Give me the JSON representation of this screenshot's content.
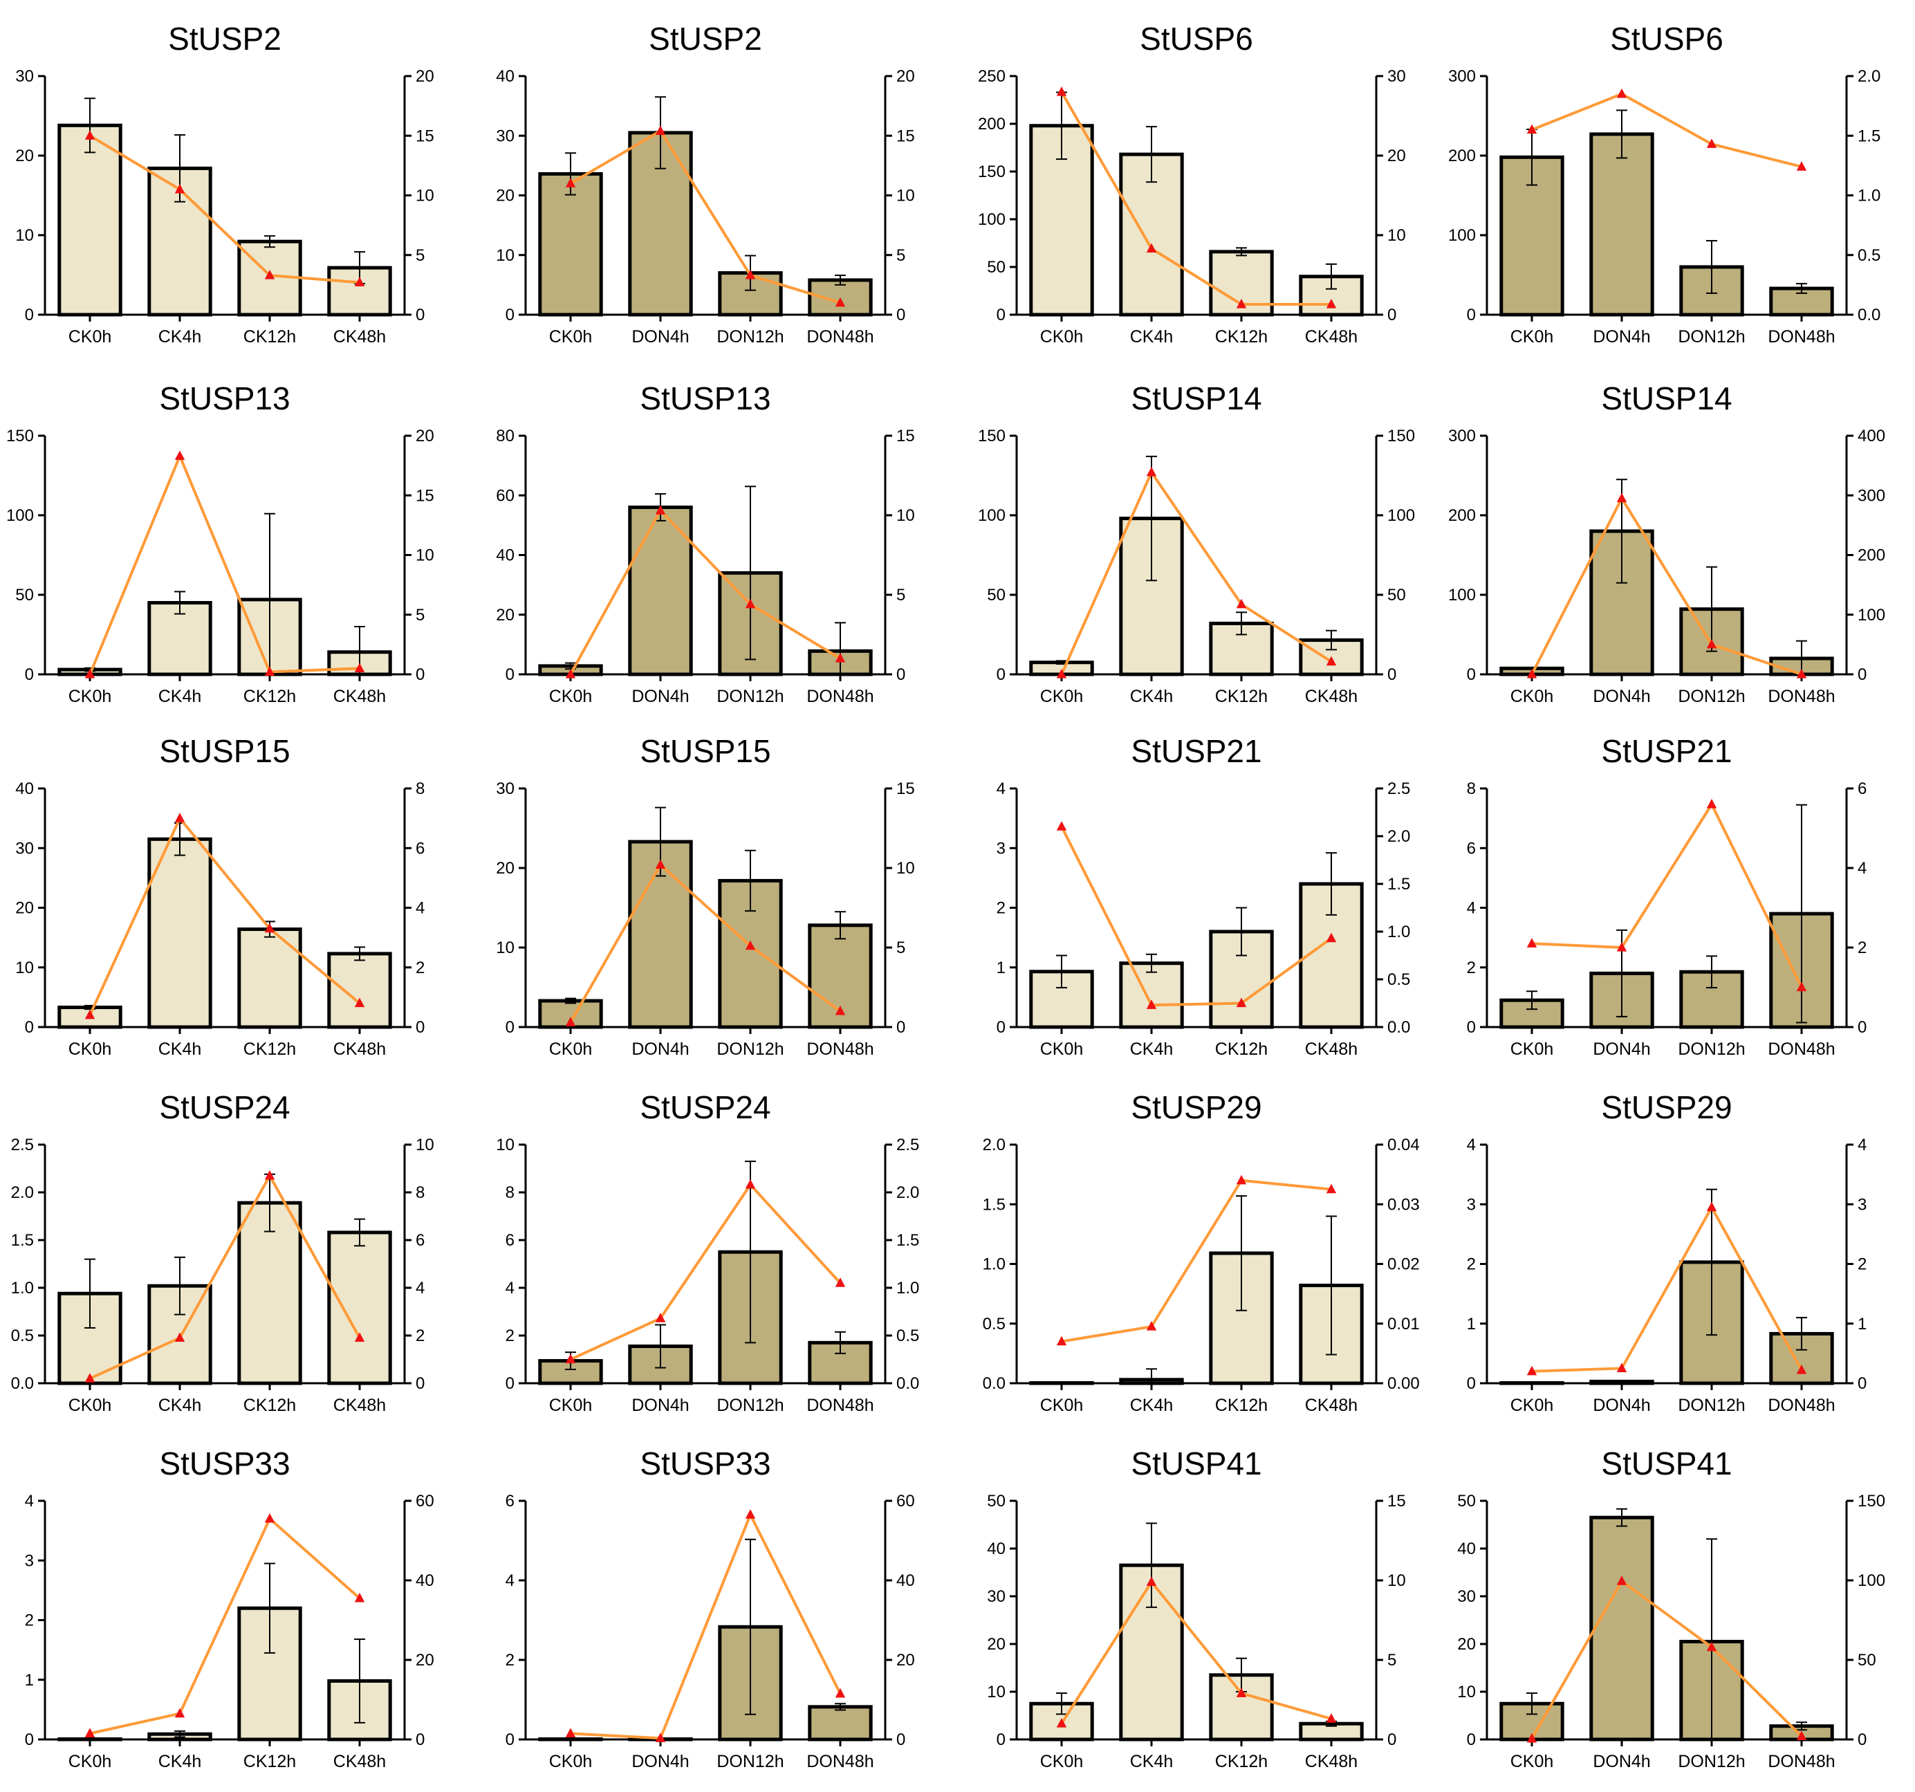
{
  "colors": {
    "ck": "#ede6ca",
    "don": "#bcaf7c",
    "line": "#ff9a38",
    "marker": "#ee1111",
    "axis": "#000000"
  },
  "chart_data": [
    {
      "type": "bar",
      "title": "StUSP2",
      "group": "ck",
      "categories": [
        "CK0h",
        "CK4h",
        "CK12h",
        "CK48h"
      ],
      "values": [
        23.8,
        18.4,
        9.2,
        5.9
      ],
      "errors": [
        3.4,
        4.2,
        0.7,
        2.0
      ],
      "line_values": [
        15.0,
        10.5,
        3.3,
        2.7
      ],
      "ylim": [
        0,
        30
      ],
      "yticks": [
        0,
        10,
        20,
        30
      ],
      "y2lim": [
        0,
        20
      ],
      "y2ticks": [
        0,
        5,
        10,
        15,
        20
      ]
    },
    {
      "type": "bar",
      "title": "StUSP2",
      "group": "don",
      "categories": [
        "CK0h",
        "DON4h",
        "DON12h",
        "DON48h"
      ],
      "values": [
        23.6,
        30.5,
        7.0,
        5.8
      ],
      "errors": [
        3.5,
        6.0,
        2.9,
        0.8
      ],
      "line_values": [
        11.0,
        15.4,
        3.3,
        1.0
      ],
      "ylim": [
        0,
        40
      ],
      "yticks": [
        0,
        10,
        20,
        30,
        40
      ],
      "y2lim": [
        0,
        20
      ],
      "y2ticks": [
        0,
        5,
        10,
        15,
        20
      ]
    },
    {
      "type": "bar",
      "title": "StUSP6",
      "group": "ck",
      "categories": [
        "CK0h",
        "CK4h",
        "CK12h",
        "CK48h"
      ],
      "values": [
        198,
        168,
        66,
        40
      ],
      "errors": [
        35,
        29,
        4,
        13
      ],
      "line_values": [
        28.0,
        8.3,
        1.3,
        1.3
      ],
      "ylim": [
        0,
        250
      ],
      "yticks": [
        0,
        50,
        100,
        150,
        200,
        250
      ],
      "y2lim": [
        0,
        30
      ],
      "y2ticks": [
        0,
        10,
        20,
        30
      ]
    },
    {
      "type": "bar",
      "title": "StUSP6",
      "group": "don",
      "categories": [
        "CK0h",
        "DON4h",
        "DON12h",
        "DON48h"
      ],
      "values": [
        198,
        227,
        60,
        33
      ],
      "errors": [
        35,
        30,
        33,
        6
      ],
      "line_values": [
        1.55,
        1.85,
        1.43,
        1.24
      ],
      "ylim": [
        0,
        300
      ],
      "yticks": [
        0,
        100,
        200,
        300
      ],
      "y2lim": [
        0,
        2
      ],
      "y2ticks": [
        "0.0",
        "0.5",
        "1.0",
        "1.5",
        "2.0"
      ]
    },
    {
      "type": "bar",
      "title": "StUSP13",
      "group": "ck",
      "categories": [
        "CK0h",
        "CK4h",
        "CK12h",
        "CK48h"
      ],
      "values": [
        3,
        45,
        47,
        14
      ],
      "errors": [
        1,
        7,
        54,
        16
      ],
      "line_values": [
        0.0,
        18.3,
        0.2,
        0.5
      ],
      "ylim": [
        0,
        150
      ],
      "yticks": [
        0,
        50,
        100,
        150
      ],
      "y2lim": [
        0,
        20
      ],
      "y2ticks": [
        0,
        5,
        10,
        15,
        20
      ]
    },
    {
      "type": "bar",
      "title": "StUSP13",
      "group": "don",
      "categories": [
        "CK0h",
        "DON4h",
        "DON12h",
        "DON48h"
      ],
      "values": [
        2.8,
        56,
        34,
        7.8
      ],
      "errors": [
        1,
        4.5,
        29,
        9.5
      ],
      "line_values": [
        0.0,
        10.3,
        4.4,
        1.0
      ],
      "ylim": [
        0,
        80
      ],
      "yticks": [
        0,
        20,
        40,
        60,
        80
      ],
      "y2lim": [
        0,
        15
      ],
      "y2ticks": [
        0,
        5,
        10,
        15
      ]
    },
    {
      "type": "bar",
      "title": "StUSP14",
      "group": "ck",
      "categories": [
        "CK0h",
        "CK4h",
        "CK12h",
        "CK48h"
      ],
      "values": [
        7.5,
        98,
        32,
        21.5
      ],
      "errors": [
        1,
        39,
        7,
        6
      ],
      "line_values": [
        0,
        127,
        44,
        8
      ],
      "ylim": [
        0,
        150
      ],
      "yticks": [
        0,
        50,
        100,
        150
      ],
      "y2lim": [
        0,
        150
      ],
      "y2ticks": [
        0,
        50,
        100,
        150
      ]
    },
    {
      "type": "bar",
      "title": "StUSP14",
      "group": "don",
      "categories": [
        "CK0h",
        "DON4h",
        "DON12h",
        "DON48h"
      ],
      "values": [
        7.5,
        180,
        82,
        20
      ],
      "errors": [
        1,
        65,
        53,
        22
      ],
      "line_values": [
        0,
        295,
        50,
        0
      ],
      "ylim": [
        0,
        300
      ],
      "yticks": [
        0,
        100,
        200,
        300
      ],
      "y2lim": [
        0,
        400
      ],
      "y2ticks": [
        0,
        100,
        200,
        300,
        400
      ]
    },
    {
      "type": "bar",
      "title": "StUSP15",
      "group": "ck",
      "categories": [
        "CK0h",
        "CK4h",
        "CK12h",
        "CK48h"
      ],
      "values": [
        3.3,
        31.5,
        16.4,
        12.3
      ],
      "errors": [
        0.3,
        2.7,
        1.3,
        1.1
      ],
      "line_values": [
        0.4,
        7.0,
        3.3,
        0.8
      ],
      "ylim": [
        0,
        40
      ],
      "yticks": [
        0,
        10,
        20,
        30,
        40
      ],
      "y2lim": [
        0,
        8
      ],
      "y2ticks": [
        0,
        2,
        4,
        6,
        8
      ]
    },
    {
      "type": "bar",
      "title": "StUSP15",
      "group": "don",
      "categories": [
        "CK0h",
        "DON4h",
        "DON12h",
        "DON48h"
      ],
      "values": [
        3.3,
        23.3,
        18.4,
        12.8
      ],
      "errors": [
        0.3,
        4.3,
        3.8,
        1.7
      ],
      "line_values": [
        0.3,
        10.2,
        5.1,
        1.0
      ],
      "ylim": [
        0,
        30
      ],
      "yticks": [
        0,
        10,
        20,
        30
      ],
      "y2lim": [
        0,
        15
      ],
      "y2ticks": [
        0,
        5,
        10,
        15
      ]
    },
    {
      "type": "bar",
      "title": "StUSP21",
      "group": "ck",
      "categories": [
        "CK0h",
        "CK4h",
        "CK12h",
        "CK48h"
      ],
      "values": [
        0.93,
        1.07,
        1.6,
        2.4
      ],
      "errors": [
        0.27,
        0.15,
        0.4,
        0.52
      ],
      "line_values": [
        2.1,
        0.23,
        0.25,
        0.93
      ],
      "ylim": [
        0,
        4
      ],
      "yticks": [
        0,
        1,
        2,
        3,
        4
      ],
      "y2lim": [
        0,
        2.5
      ],
      "y2ticks": [
        "0.0",
        "0.5",
        "1.0",
        "1.5",
        "2.0",
        "2.5"
      ]
    },
    {
      "type": "bar",
      "title": "StUSP21",
      "group": "don",
      "categories": [
        "CK0h",
        "DON4h",
        "DON12h",
        "DON48h"
      ],
      "values": [
        0.9,
        1.8,
        1.85,
        3.8
      ],
      "errors": [
        0.3,
        1.45,
        0.53,
        3.65
      ],
      "line_values": [
        2.1,
        2.0,
        5.6,
        1.0
      ],
      "ylim": [
        0,
        8
      ],
      "yticks": [
        0,
        2,
        4,
        6,
        8
      ],
      "y2lim": [
        0,
        6
      ],
      "y2ticks": [
        0,
        2,
        4,
        6
      ]
    },
    {
      "type": "bar",
      "title": "StUSP24",
      "group": "ck",
      "categories": [
        "CK0h",
        "CK4h",
        "CK12h",
        "CK48h"
      ],
      "values": [
        0.94,
        1.02,
        1.89,
        1.58
      ],
      "errors": [
        0.36,
        0.3,
        0.3,
        0.14
      ],
      "line_values": [
        0.2,
        1.9,
        8.7,
        1.9
      ],
      "ylim": [
        0,
        2.5
      ],
      "yticks": [
        "0.0",
        "0.5",
        "1.0",
        "1.5",
        "2.0",
        "2.5"
      ],
      "y2lim": [
        0,
        10
      ],
      "y2ticks": [
        0,
        2,
        4,
        6,
        8,
        10
      ]
    },
    {
      "type": "bar",
      "title": "StUSP24",
      "group": "don",
      "categories": [
        "CK0h",
        "DON4h",
        "DON12h",
        "DON48h"
      ],
      "values": [
        0.94,
        1.55,
        5.5,
        1.7
      ],
      "errors": [
        0.36,
        0.9,
        3.8,
        0.45
      ],
      "line_values": [
        0.25,
        0.68,
        2.08,
        1.05
      ],
      "ylim": [
        0,
        10
      ],
      "yticks": [
        0,
        2,
        4,
        6,
        8,
        10
      ],
      "y2lim": [
        0,
        2.5
      ],
      "y2ticks": [
        "0.0",
        "0.5",
        "1.0",
        "1.5",
        "2.0",
        "2.5"
      ]
    },
    {
      "type": "bar",
      "title": "StUSP29",
      "group": "ck",
      "categories": [
        "CK0h",
        "CK4h",
        "CK12h",
        "CK48h"
      ],
      "values": [
        0.0,
        0.03,
        1.09,
        0.82
      ],
      "errors": [
        0,
        0.09,
        0.48,
        0.58
      ],
      "line_values": [
        0.007,
        0.0095,
        0.034,
        0.0325
      ],
      "ylim": [
        0,
        2
      ],
      "yticks": [
        "0.0",
        "0.5",
        "1.0",
        "1.5",
        "2.0"
      ],
      "y2lim": [
        0,
        0.04
      ],
      "y2ticks": [
        "0.00",
        "0.01",
        "0.02",
        "0.03",
        "0.04"
      ]
    },
    {
      "type": "bar",
      "title": "StUSP29",
      "group": "don",
      "categories": [
        "CK0h",
        "DON4h",
        "DON12h",
        "DON48h"
      ],
      "values": [
        0.0,
        0.03,
        2.03,
        0.83
      ],
      "errors": [
        0,
        0.01,
        1.22,
        0.27
      ],
      "line_values": [
        0.2,
        0.25,
        2.95,
        0.22
      ],
      "ylim": [
        0,
        4
      ],
      "yticks": [
        0,
        1,
        2,
        3,
        4
      ],
      "y2lim": [
        0,
        4
      ],
      "y2ticks": [
        0,
        1,
        2,
        3,
        4
      ]
    },
    {
      "type": "bar",
      "title": "StUSP33",
      "group": "ck",
      "categories": [
        "CK0h",
        "CK4h",
        "CK12h",
        "CK48h"
      ],
      "values": [
        0.0,
        0.09,
        2.2,
        0.98
      ],
      "errors": [
        0,
        0.05,
        0.75,
        0.7
      ],
      "line_values": [
        1.5,
        6.5,
        55.5,
        35.5
      ],
      "ylim": [
        0,
        4
      ],
      "yticks": [
        0,
        1,
        2,
        3,
        4
      ],
      "y2lim": [
        0,
        60
      ],
      "y2ticks": [
        0,
        20,
        40,
        60
      ]
    },
    {
      "type": "bar",
      "title": "StUSP33",
      "group": "don",
      "categories": [
        "CK0h",
        "DON4h",
        "DON12h",
        "DON48h"
      ],
      "values": [
        0.0,
        0.0,
        2.83,
        0.82
      ],
      "errors": [
        0,
        0,
        2.2,
        0.08
      ],
      "line_values": [
        1.5,
        0.3,
        56.5,
        11.5
      ],
      "ylim": [
        0,
        6
      ],
      "yticks": [
        0,
        2,
        4,
        6
      ],
      "y2lim": [
        0,
        60
      ],
      "y2ticks": [
        0,
        20,
        40,
        60
      ]
    },
    {
      "type": "bar",
      "title": "StUSP41",
      "group": "ck",
      "categories": [
        "CK0h",
        "CK4h",
        "CK12h",
        "CK48h"
      ],
      "values": [
        7.5,
        36.5,
        13.5,
        3.3
      ],
      "errors": [
        2.2,
        8.8,
        3.5,
        0.5
      ],
      "line_values": [
        1.0,
        9.9,
        2.9,
        1.3
      ],
      "ylim": [
        0,
        50
      ],
      "yticks": [
        0,
        10,
        20,
        30,
        40,
        50
      ],
      "y2lim": [
        0,
        15
      ],
      "y2ticks": [
        0,
        5,
        10,
        15
      ]
    },
    {
      "type": "bar",
      "title": "StUSP41",
      "group": "don",
      "categories": [
        "CK0h",
        "DON4h",
        "DON12h",
        "DON48h"
      ],
      "values": [
        7.5,
        46.5,
        20.5,
        2.8
      ],
      "errors": [
        2.2,
        1.8,
        21.5,
        0.8
      ],
      "line_values": [
        0.5,
        99.5,
        58,
        2
      ],
      "ylim": [
        0,
        50
      ],
      "yticks": [
        0,
        10,
        20,
        30,
        40,
        50
      ],
      "y2lim": [
        0,
        150
      ],
      "y2ticks": [
        0,
        50,
        100,
        150
      ]
    }
  ]
}
